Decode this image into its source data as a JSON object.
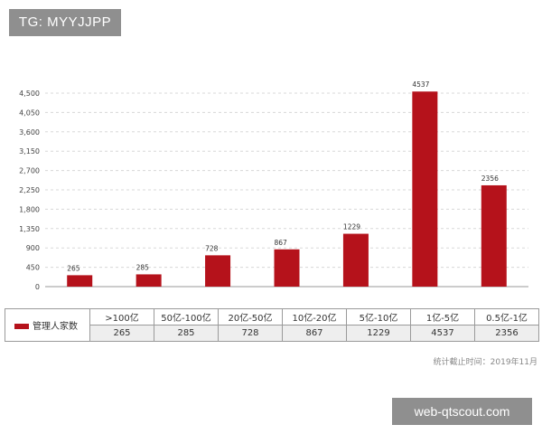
{
  "watermark_top": "TG: MYYJJPP",
  "watermark_bottom": "web-qtscout.com",
  "footnote": "统计截止时间：2019年11月",
  "chart_data": {
    "type": "bar",
    "categories": [
      ">100亿",
      "50亿-100亿",
      "20亿-50亿",
      "10亿-20亿",
      "5亿-10亿",
      "1亿-5亿",
      "0.5亿-1亿"
    ],
    "series": [
      {
        "name": "管理人家数",
        "values": [
          265,
          285,
          728,
          867,
          1229,
          4537,
          2356
        ],
        "color": "#b5121b"
      }
    ],
    "yticks": [
      "0",
      "450",
      "900",
      "1,350",
      "1,800",
      "2,250",
      "2,700",
      "3,150",
      "3,600",
      "4,050",
      "4,500"
    ],
    "ylim": [
      0,
      4500
    ],
    "grid": true,
    "legend_placement": "data-table-left"
  }
}
